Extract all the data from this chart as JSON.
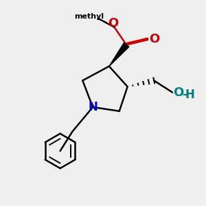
{
  "background_color": "#efefef",
  "atom_colors": {
    "C": "#000000",
    "N": "#0000cc",
    "O": "#cc0000",
    "OH": "#008080"
  },
  "bond_color": "#000000",
  "figsize": [
    3.0,
    3.0
  ],
  "dpi": 100
}
